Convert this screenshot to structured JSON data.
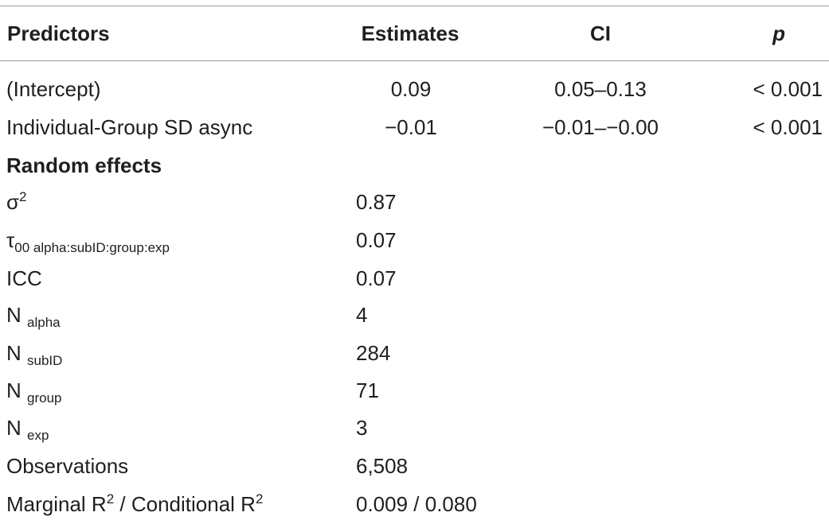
{
  "header": {
    "predictors": "Predictors",
    "estimates": "Estimates",
    "ci": "CI",
    "p": "p"
  },
  "fixed_rows": [
    {
      "label": "(Intercept)",
      "estimate": "0.09",
      "ci": "0.05–0.13",
      "p": "< 0.001"
    },
    {
      "label": "Individual-Group SD async",
      "estimate": "−0.01",
      "ci": "−0.01–−0.00",
      "p": "< 0.001"
    }
  ],
  "random_effects": {
    "heading": "Random effects",
    "sigma2": {
      "symbol": "σ",
      "sup": "2",
      "value": "0.87"
    },
    "tau00": {
      "symbol": "τ",
      "sub": "00 alpha:subID:group:exp",
      "value": "0.07"
    },
    "icc": {
      "label": "ICC",
      "value": "0.07"
    },
    "n_alpha": {
      "label": "N",
      "sub": "alpha",
      "value": "4"
    },
    "n_subid": {
      "label": "N",
      "sub": "subID",
      "value": "284"
    },
    "n_group": {
      "label": "N",
      "sub": "group",
      "value": "71"
    },
    "n_exp": {
      "label": "N",
      "sub": "exp",
      "value": "3"
    },
    "observations": {
      "label": "Observations",
      "value": "6,508"
    },
    "r2": {
      "label_a": "Marginal R",
      "sup_a": "2",
      "sep": " / Conditional R",
      "sup_b": "2",
      "value": "0.009 / 0.080"
    }
  }
}
